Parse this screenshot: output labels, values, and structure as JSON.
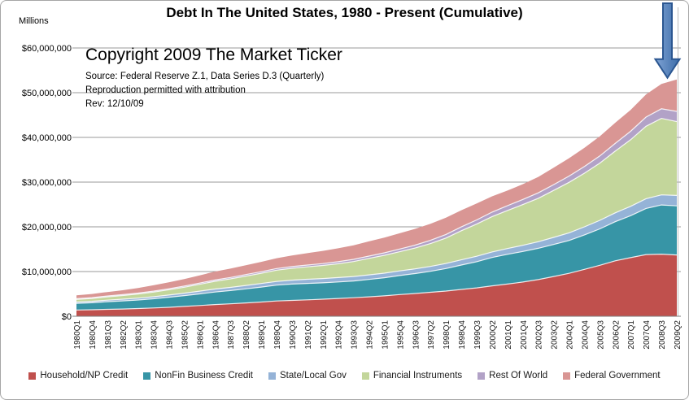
{
  "chart_data": {
    "type": "area",
    "stacked": true,
    "title": "Debt In The United States, 1980 - Present (Cumulative)",
    "unit_label": "Millions",
    "xlabel": "",
    "ylabel": "Millions",
    "ylim": [
      0,
      60000000
    ],
    "y_tick_interval": 10000000,
    "y_tick_labels": [
      "$0",
      "$10,000,000",
      "$20,000,000",
      "$30,000,000",
      "$40,000,000",
      "$50,000,000",
      "$60,000,000"
    ],
    "grid": true,
    "legend_position": "bottom",
    "annotations": {
      "copyright": "Copyright 2009 The Market Ticker",
      "source": "Source: Federal Reserve Z.1, Data Series D.3 (Quarterly)",
      "permission": "Reproduction permitted with attribution",
      "revision": "Rev: 12/10/09"
    },
    "annotation_arrow": {
      "style": "block-arrow-down",
      "points_at": "2009Q2",
      "fill_light": "#7FA3D4",
      "fill_dark": "#3C6CA8",
      "stroke": "#2C5791"
    },
    "x_tick_labels": [
      "1980Q1",
      "1980Q4",
      "1981Q3",
      "1982Q2",
      "1983Q1",
      "1983Q4",
      "1984Q3",
      "1985Q2",
      "1986Q1",
      "1986Q4",
      "1987Q3",
      "1988Q2",
      "1989Q1",
      "1989Q4",
      "1990Q3",
      "1991Q2",
      "1992Q1",
      "1992Q4",
      "1993Q3",
      "1994Q2",
      "1995Q1",
      "1995Q4",
      "1996Q3",
      "1997Q2",
      "1998Q1",
      "1998Q4",
      "1999Q3",
      "2000Q2",
      "2001Q1",
      "2001Q4",
      "2002Q3",
      "2003Q2",
      "2004Q1",
      "2004Q4",
      "2005Q3",
      "2006Q2",
      "2007Q1",
      "2007Q4",
      "2008Q3",
      "2009Q2"
    ],
    "series": [
      {
        "name": "Household/NP Credit",
        "color": "#C0504D",
        "values": [
          1400000,
          1460000,
          1550000,
          1610000,
          1720000,
          1860000,
          2000000,
          2200000,
          2400000,
          2610000,
          2790000,
          2980000,
          3180000,
          3410000,
          3550000,
          3680000,
          3810000,
          3980000,
          4140000,
          4350000,
          4560000,
          4850000,
          5090000,
          5360000,
          5630000,
          6000000,
          6350000,
          6800000,
          7200000,
          7650000,
          8200000,
          8900000,
          9600000,
          10500000,
          11400000,
          12400000,
          13100000,
          13800000,
          13900000,
          13700000
        ]
      },
      {
        "name": "NonFin Business Credit",
        "color": "#3795A6",
        "values": [
          1470000,
          1550000,
          1700000,
          1820000,
          1920000,
          2050000,
          2250000,
          2420000,
          2600000,
          2800000,
          2950000,
          3150000,
          3350000,
          3550000,
          3650000,
          3670000,
          3670000,
          3700000,
          3750000,
          3880000,
          4050000,
          4250000,
          4450000,
          4700000,
          5050000,
          5450000,
          5850000,
          6350000,
          6650000,
          6850000,
          7000000,
          7150000,
          7350000,
          7700000,
          8150000,
          8750000,
          9400000,
          10300000,
          11000000,
          11000000
        ]
      },
      {
        "name": "State/Local Gov",
        "color": "#95B3D7",
        "values": [
          310000,
          330000,
          350000,
          380000,
          420000,
          450000,
          490000,
          550000,
          620000,
          680000,
          720000,
          760000,
          790000,
          830000,
          870000,
          920000,
          950000,
          970000,
          1000000,
          1020000,
          1030000,
          1040000,
          1060000,
          1090000,
          1120000,
          1170000,
          1210000,
          1240000,
          1300000,
          1380000,
          1480000,
          1590000,
          1700000,
          1800000,
          1900000,
          1980000,
          2080000,
          2190000,
          2250000,
          2320000
        ]
      },
      {
        "name": "Financial Instruments",
        "color": "#C3D69B",
        "values": [
          580000,
          640000,
          730000,
          820000,
          920000,
          1040000,
          1180000,
          1330000,
          1530000,
          1730000,
          1900000,
          2100000,
          2300000,
          2520000,
          2650000,
          2780000,
          2930000,
          3100000,
          3350000,
          3700000,
          4000000,
          4300000,
          4650000,
          5100000,
          5700000,
          6500000,
          7200000,
          7900000,
          8500000,
          9100000,
          9700000,
          10500000,
          11300000,
          12000000,
          12800000,
          13800000,
          14900000,
          16200000,
          17100000,
          16500000
        ]
      },
      {
        "name": "Rest Of World",
        "color": "#B2A2C7",
        "values": [
          170000,
          180000,
          190000,
          200000,
          210000,
          220000,
          230000,
          250000,
          270000,
          290000,
          310000,
          330000,
          350000,
          370000,
          390000,
          410000,
          430000,
          450000,
          480000,
          510000,
          550000,
          600000,
          660000,
          730000,
          800000,
          870000,
          930000,
          1000000,
          1080000,
          1150000,
          1220000,
          1300000,
          1400000,
          1500000,
          1600000,
          1730000,
          1880000,
          2050000,
          2150000,
          2300000
        ]
      },
      {
        "name": "Federal Government",
        "color": "#D99694",
        "values": [
          740000,
          820000,
          900000,
          990000,
          1140000,
          1300000,
          1430000,
          1580000,
          1730000,
          1890000,
          1990000,
          2100000,
          2190000,
          2310000,
          2470000,
          2640000,
          2820000,
          3000000,
          3160000,
          3290000,
          3410000,
          3520000,
          3630000,
          3690000,
          3740000,
          3720000,
          3680000,
          3530000,
          3380000,
          3410000,
          3570000,
          3790000,
          4000000,
          4200000,
          4410000,
          4610000,
          4770000,
          5080000,
          5560000,
          7140000
        ]
      }
    ]
  }
}
